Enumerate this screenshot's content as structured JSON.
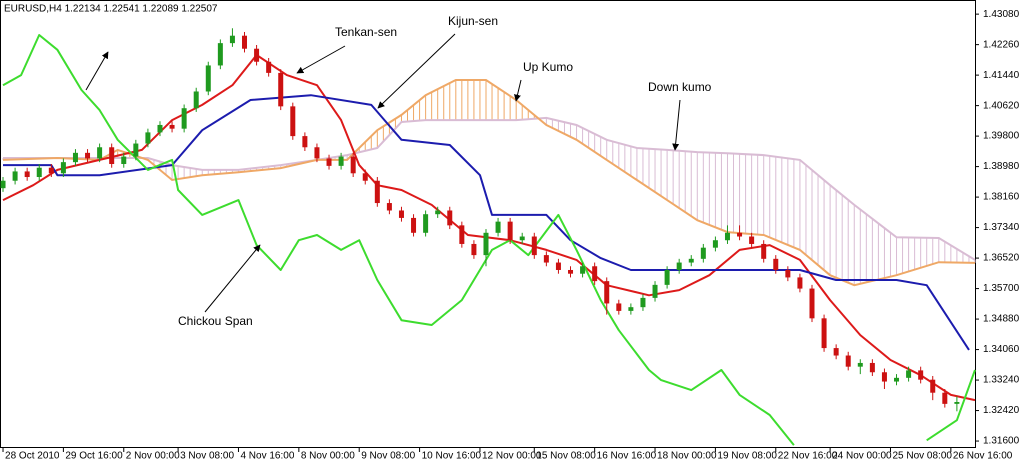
{
  "chart_data": {
    "type": "candlestick",
    "title": "EURUSD,H4  1.22134 1.22541 1.22089 1.22507",
    "annotations": [
      "Tenkan-sen",
      "Kijun-sen",
      "Up Kumo",
      "Down kumo",
      "Chickou Span"
    ],
    "xlim": [
      -0.5,
      161
    ],
    "ylim": [
      1.3144,
      1.4346
    ],
    "xticks": [
      {
        "value": 0,
        "label": "28 Oct 2010"
      },
      {
        "value": 10,
        "label": "29 Oct 16:00"
      },
      {
        "value": 20,
        "label": "2 Nov 00:00"
      },
      {
        "value": 29,
        "label": "3 Nov 08:00"
      },
      {
        "value": 39,
        "label": "4 Nov 16:00"
      },
      {
        "value": 49,
        "label": "8 Nov 00:00"
      },
      {
        "value": 59,
        "label": "9 Nov 08:00"
      },
      {
        "value": 69,
        "label": "10 Nov 16:00"
      },
      {
        "value": 79,
        "label": "12 Nov 00:00"
      },
      {
        "value": 88,
        "label": "15 Nov 08:00"
      },
      {
        "value": 98,
        "label": "16 Nov 16:00"
      },
      {
        "value": 108,
        "label": "18 Nov 00:00"
      },
      {
        "value": 118,
        "label": "19 Nov 08:00"
      },
      {
        "value": 128,
        "label": "22 Nov 16:00"
      },
      {
        "value": 137,
        "label": "24 Nov 00:00"
      },
      {
        "value": 147,
        "label": "25 Nov 08:00"
      },
      {
        "value": 157,
        "label": "26 Nov 16:00"
      }
    ],
    "yticks": [
      {
        "value": 1.4308,
        "label": "1.43080"
      },
      {
        "value": 1.4226,
        "label": "1.42260"
      },
      {
        "value": 1.4144,
        "label": "1.41440"
      },
      {
        "value": 1.4062,
        "label": "1.40620"
      },
      {
        "value": 1.398,
        "label": "1.39800"
      },
      {
        "value": 1.3898,
        "label": "1.38980"
      },
      {
        "value": 1.3816,
        "label": "1.38160"
      },
      {
        "value": 1.3734,
        "label": "1.37340"
      },
      {
        "value": 1.3652,
        "label": "1.36520"
      },
      {
        "value": 1.357,
        "label": "1.35700"
      },
      {
        "value": 1.3488,
        "label": "1.34880"
      },
      {
        "value": 1.3406,
        "label": "1.34060"
      },
      {
        "value": 1.3324,
        "label": "1.33240"
      },
      {
        "value": 1.3242,
        "label": "1.32420"
      },
      {
        "value": 1.316,
        "label": "1.31600"
      }
    ],
    "up_color": "#1f9a1f",
    "down_color": "#cc1111",
    "candles": {
      "x": [
        0,
        2,
        4,
        6,
        8,
        10,
        12,
        14,
        16,
        18,
        20,
        22,
        24,
        26,
        28,
        30,
        32,
        34,
        36,
        38,
        40,
        42,
        44,
        46,
        48,
        50,
        52,
        54,
        56,
        58,
        60,
        62,
        64,
        66,
        68,
        70,
        72,
        74,
        76,
        78,
        80,
        82,
        84,
        86,
        88,
        90,
        92,
        94,
        96,
        98,
        100,
        102,
        104,
        106,
        108,
        110,
        112,
        114,
        116,
        118,
        120,
        122,
        124,
        126,
        128,
        130,
        132,
        134,
        136,
        138,
        140,
        142,
        144,
        146,
        148,
        150,
        152,
        154,
        156,
        158
      ],
      "open": [
        1.384,
        1.386,
        1.3885,
        1.387,
        1.3895,
        1.388,
        1.391,
        1.3935,
        1.392,
        1.395,
        1.3905,
        1.3925,
        1.396,
        1.399,
        1.401,
        1.4,
        1.4055,
        1.41,
        1.417,
        1.423,
        1.425,
        1.4215,
        1.418,
        1.415,
        1.406,
        1.398,
        1.395,
        1.392,
        1.39,
        1.3925,
        1.388,
        1.386,
        1.38,
        1.378,
        1.376,
        1.372,
        1.377,
        1.378,
        1.374,
        1.369,
        1.366,
        1.372,
        1.375,
        1.37,
        1.371,
        1.366,
        1.364,
        1.362,
        1.361,
        1.363,
        1.359,
        1.353,
        1.351,
        1.352,
        1.3545,
        1.358,
        1.362,
        1.364,
        1.365,
        1.368,
        1.37,
        1.372,
        1.371,
        1.369,
        1.365,
        1.362,
        1.36,
        1.357,
        1.349,
        1.341,
        1.339,
        1.336,
        1.337,
        1.3345,
        1.332,
        1.333,
        1.335,
        1.3325,
        1.329,
        1.326
      ],
      "high": [
        1.387,
        1.3895,
        1.3895,
        1.3905,
        1.3905,
        1.392,
        1.3945,
        1.3945,
        1.396,
        1.396,
        1.3935,
        1.397,
        1.4,
        1.402,
        1.402,
        1.4065,
        1.411,
        1.418,
        1.424,
        1.427,
        1.426,
        1.4225,
        1.419,
        1.416,
        1.407,
        1.399,
        1.396,
        1.393,
        1.3935,
        1.3935,
        1.389,
        1.387,
        1.381,
        1.379,
        1.377,
        1.378,
        1.379,
        1.379,
        1.375,
        1.37,
        1.373,
        1.376,
        1.376,
        1.372,
        1.372,
        1.367,
        1.365,
        1.363,
        1.364,
        1.364,
        1.36,
        1.354,
        1.353,
        1.3555,
        1.359,
        1.363,
        1.365,
        1.366,
        1.369,
        1.371,
        1.374,
        1.374,
        1.372,
        1.37,
        1.366,
        1.363,
        1.361,
        1.358,
        1.35,
        1.342,
        1.34,
        1.338,
        1.338,
        1.3355,
        1.334,
        1.336,
        1.336,
        1.3335,
        1.33,
        1.328
      ],
      "low": [
        1.383,
        1.385,
        1.386,
        1.386,
        1.387,
        1.387,
        1.39,
        1.391,
        1.391,
        1.3895,
        1.3895,
        1.3915,
        1.395,
        1.398,
        1.399,
        1.399,
        1.4045,
        1.409,
        1.416,
        1.422,
        1.4205,
        1.417,
        1.414,
        1.405,
        1.397,
        1.394,
        1.391,
        1.389,
        1.389,
        1.387,
        1.385,
        1.379,
        1.377,
        1.375,
        1.371,
        1.371,
        1.376,
        1.373,
        1.368,
        1.365,
        1.363,
        1.371,
        1.369,
        1.369,
        1.365,
        1.363,
        1.361,
        1.36,
        1.36,
        1.358,
        1.35,
        1.35,
        1.35,
        1.351,
        1.3535,
        1.357,
        1.361,
        1.363,
        1.364,
        1.367,
        1.369,
        1.37,
        1.368,
        1.364,
        1.361,
        1.359,
        1.356,
        1.348,
        1.34,
        1.338,
        1.335,
        1.334,
        1.3335,
        1.33,
        1.331,
        1.332,
        1.3315,
        1.327,
        1.325,
        1.324
      ],
      "close": [
        1.386,
        1.3885,
        1.387,
        1.3895,
        1.388,
        1.391,
        1.3935,
        1.392,
        1.395,
        1.3905,
        1.3925,
        1.396,
        1.399,
        1.401,
        1.4,
        1.4055,
        1.41,
        1.417,
        1.423,
        1.425,
        1.4215,
        1.418,
        1.415,
        1.406,
        1.398,
        1.395,
        1.392,
        1.39,
        1.3925,
        1.388,
        1.386,
        1.38,
        1.378,
        1.376,
        1.372,
        1.377,
        1.378,
        1.374,
        1.369,
        1.366,
        1.372,
        1.375,
        1.37,
        1.371,
        1.366,
        1.364,
        1.362,
        1.361,
        1.363,
        1.359,
        1.353,
        1.351,
        1.352,
        1.3545,
        1.358,
        1.362,
        1.364,
        1.365,
        1.368,
        1.37,
        1.372,
        1.371,
        1.369,
        1.365,
        1.362,
        1.36,
        1.357,
        1.349,
        1.341,
        1.339,
        1.336,
        1.337,
        1.3345,
        1.332,
        1.333,
        1.335,
        1.3325,
        1.329,
        1.326,
        1.3265
      ]
    },
    "kumo": {
      "x": [
        0,
        9,
        16,
        19,
        24,
        28,
        33,
        39,
        46,
        52,
        57,
        62,
        66,
        70,
        75,
        80,
        85,
        90,
        95,
        100,
        105,
        110,
        115,
        120,
        126,
        132,
        137,
        141,
        148,
        155,
        161
      ],
      "span_a": [
        1.3916,
        1.3921,
        1.3916,
        1.3943,
        1.3916,
        1.3862,
        1.3875,
        1.3883,
        1.3894,
        1.3916,
        1.3916,
        1.3996,
        1.4037,
        1.409,
        1.4131,
        1.4131,
        1.4077,
        1.401,
        1.397,
        1.3916,
        1.3862,
        1.3808,
        1.3754,
        1.3722,
        1.3714,
        1.3674,
        1.3606,
        1.3579,
        1.3606,
        1.3641,
        1.3639
      ],
      "span_b": [
        1.3921,
        1.3921,
        1.3921,
        1.3921,
        1.3921,
        1.3902,
        1.3889,
        1.3889,
        1.3902,
        1.3916,
        1.3929,
        1.3948,
        1.4018,
        1.4023,
        1.4023,
        1.4023,
        1.4023,
        1.4029,
        1.401,
        1.397,
        1.3948,
        1.3943,
        1.3937,
        1.3934,
        1.3929,
        1.3916,
        1.3848,
        1.3795,
        1.3708,
        1.3706,
        1.3647
      ],
      "span_a_color": "#efa866",
      "span_b_color": "#d9bcd4"
    },
    "series": [
      {
        "color": "#dd1a1a",
        "x": [
          0,
          5,
          9,
          16,
          23,
          28,
          33,
          38,
          42,
          47,
          52,
          56,
          59,
          62,
          66,
          71,
          77,
          84,
          90,
          95,
          100,
          107,
          112,
          117,
          122,
          127,
          132,
          137,
          142,
          147,
          152,
          157,
          161
        ],
        "values": [
          1.3808,
          1.3848,
          1.3889,
          1.3916,
          1.3943,
          1.4023,
          1.4064,
          1.4117,
          1.4198,
          1.4144,
          1.4117,
          1.4023,
          1.3902,
          1.3848,
          1.3835,
          1.3795,
          1.3714,
          1.37,
          1.3674,
          1.3647,
          1.3579,
          1.3552,
          1.3566,
          1.3606,
          1.3674,
          1.3687,
          1.3647,
          1.3539,
          1.3445,
          1.3378,
          1.3337,
          1.3284,
          1.327
        ]
      },
      {
        "color": "#1c1cae",
        "x": [
          0,
          8,
          9,
          16,
          28,
          33,
          41,
          51,
          61,
          66,
          74,
          79,
          81,
          90,
          94,
          99,
          104,
          132,
          138,
          148,
          153,
          160
        ],
        "values": [
          1.3902,
          1.3902,
          1.3875,
          1.3875,
          1.3902,
          1.3996,
          1.4077,
          1.409,
          1.4064,
          1.397,
          1.3956,
          1.3875,
          1.3768,
          1.3768,
          1.37,
          1.3652,
          1.362,
          1.362,
          1.3593,
          1.3593,
          1.3579,
          1.3405
        ]
      },
      {
        "color": "#3ddc2e",
        "x": [
          0,
          3,
          6,
          9,
          13,
          16,
          19,
          24,
          28,
          29,
          33,
          39,
          42,
          46,
          49,
          52,
          56,
          59,
          62,
          66,
          71,
          76,
          81,
          84,
          87,
          92,
          95,
          99,
          102,
          107,
          109,
          114,
          119,
          122,
          127,
          131,
          145,
          153,
          158,
          161
        ],
        "values": [
          1.4117,
          1.4144,
          1.4252,
          1.4212,
          1.4104,
          1.405,
          1.397,
          1.3889,
          1.3916,
          1.3835,
          1.3768,
          1.3808,
          1.3687,
          1.362,
          1.37,
          1.3714,
          1.3674,
          1.37,
          1.3593,
          1.3485,
          1.3472,
          1.3539,
          1.3674,
          1.37,
          1.366,
          1.3768,
          1.3674,
          1.3539,
          1.3458,
          1.3351,
          1.3324,
          1.3297,
          1.3351,
          1.3284,
          1.323,
          1.3149,
          null,
          1.3162,
          1.3216,
          1.3351
        ]
      }
    ]
  }
}
